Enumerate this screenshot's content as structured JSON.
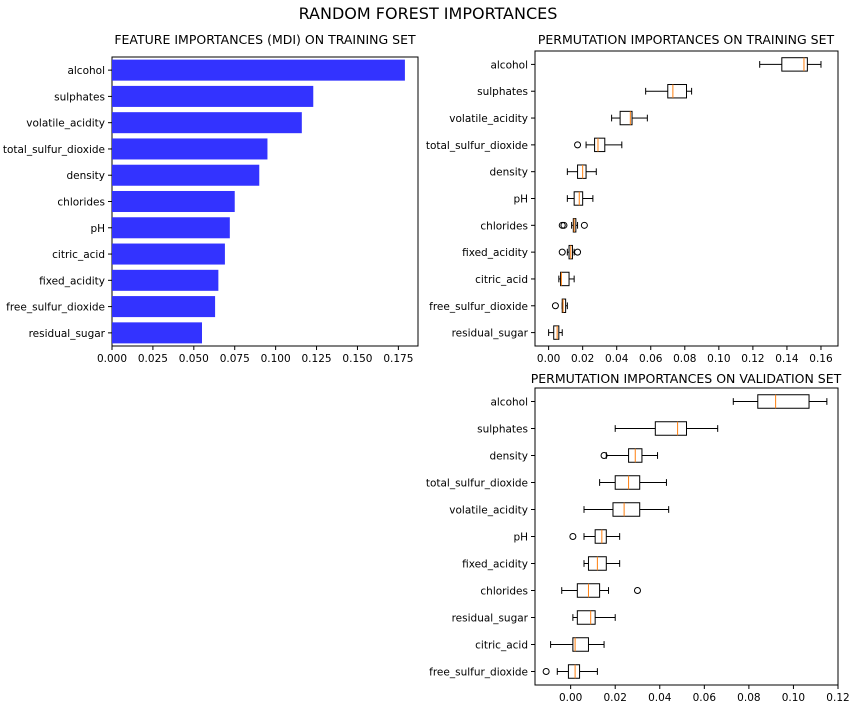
{
  "figure": {
    "title": "RANDOM FOREST IMPORTANCES"
  },
  "chart_data": [
    {
      "id": "mdi",
      "type": "bar",
      "orientation": "horizontal",
      "title": "FEATURE IMPORTANCES (MDI) ON TRAINING SET",
      "xlabel": "",
      "ylabel": "",
      "xlim": [
        0.0,
        0.187
      ],
      "xticks": [
        "0.000",
        "0.025",
        "0.050",
        "0.075",
        "0.100",
        "0.125",
        "0.150",
        "0.175"
      ],
      "bar_color": "#3333ff",
      "categories": [
        "alcohol",
        "sulphates",
        "volatile_acidity",
        "total_sulfur_dioxide",
        "density",
        "chlorides",
        "pH",
        "citric_acid",
        "fixed_acidity",
        "free_sulfur_dioxide",
        "residual_sugar"
      ],
      "values": [
        0.179,
        0.123,
        0.116,
        0.095,
        0.09,
        0.075,
        0.072,
        0.069,
        0.065,
        0.063,
        0.055
      ],
      "grid": false
    },
    {
      "id": "perm_train",
      "type": "box",
      "orientation": "horizontal",
      "title": "PERMUTATION IMPORTANCES ON TRAINING SET",
      "xlabel": "",
      "ylabel": "",
      "xlim": [
        -0.008,
        0.17
      ],
      "xticks": [
        "0.00",
        "0.02",
        "0.04",
        "0.06",
        "0.08",
        "0.10",
        "0.12",
        "0.14",
        "0.16"
      ],
      "box_color": "#000000",
      "median_color": "#ff7f0e",
      "categories": [
        "alcohol",
        "sulphates",
        "volatile_acidity",
        "total_sulfur_dioxide",
        "density",
        "pH",
        "chlorides",
        "fixed_acidity",
        "citric_acid",
        "free_sulfur_dioxide",
        "residual_sugar"
      ],
      "boxes": [
        {
          "wlo": 0.124,
          "q1": 0.137,
          "med": 0.15,
          "q3": 0.152,
          "whi": 0.16,
          "outliers": []
        },
        {
          "wlo": 0.057,
          "q1": 0.07,
          "med": 0.073,
          "q3": 0.081,
          "whi": 0.084,
          "outliers": []
        },
        {
          "wlo": 0.037,
          "q1": 0.042,
          "med": 0.048,
          "q3": 0.049,
          "whi": 0.058,
          "outliers": []
        },
        {
          "wlo": 0.022,
          "q1": 0.027,
          "med": 0.029,
          "q3": 0.033,
          "whi": 0.043,
          "outliers": [
            0.017
          ]
        },
        {
          "wlo": 0.011,
          "q1": 0.017,
          "med": 0.02,
          "q3": 0.022,
          "whi": 0.028,
          "outliers": []
        },
        {
          "wlo": 0.011,
          "q1": 0.015,
          "med": 0.018,
          "q3": 0.02,
          "whi": 0.026,
          "outliers": []
        },
        {
          "wlo": 0.0135,
          "q1": 0.0145,
          "med": 0.015,
          "q3": 0.016,
          "whi": 0.017,
          "outliers": [
            0.008,
            0.009,
            0.021
          ]
        },
        {
          "wlo": 0.011,
          "q1": 0.012,
          "med": 0.013,
          "q3": 0.014,
          "whi": 0.015,
          "outliers": [
            0.008,
            0.017
          ]
        },
        {
          "wlo": 0.006,
          "q1": 0.007,
          "med": 0.0075,
          "q3": 0.012,
          "whi": 0.015,
          "outliers": []
        },
        {
          "wlo": 0.008,
          "q1": 0.008,
          "med": 0.0085,
          "q3": 0.01,
          "whi": 0.011,
          "outliers": [
            0.004
          ]
        },
        {
          "wlo": 0.0,
          "q1": 0.003,
          "med": 0.005,
          "q3": 0.006,
          "whi": 0.008,
          "outliers": []
        }
      ],
      "grid": false
    },
    {
      "id": "perm_val",
      "type": "box",
      "orientation": "horizontal",
      "title": "PERMUTATION IMPORTANCES ON VALIDATION SET",
      "xlabel": "",
      "ylabel": "",
      "xlim": [
        -0.016,
        0.12
      ],
      "xticks": [
        "0.00",
        "0.02",
        "0.04",
        "0.06",
        "0.08",
        "0.10",
        "0.12"
      ],
      "box_color": "#000000",
      "median_color": "#ff7f0e",
      "categories": [
        "alcohol",
        "sulphates",
        "density",
        "total_sulfur_dioxide",
        "volatile_acidity",
        "pH",
        "fixed_acidity",
        "chlorides",
        "residual_sugar",
        "citric_acid",
        "free_sulfur_dioxide"
      ],
      "boxes": [
        {
          "wlo": 0.073,
          "q1": 0.084,
          "med": 0.092,
          "q3": 0.107,
          "whi": 0.115,
          "outliers": []
        },
        {
          "wlo": 0.02,
          "q1": 0.038,
          "med": 0.048,
          "q3": 0.052,
          "whi": 0.066,
          "outliers": []
        },
        {
          "wlo": 0.016,
          "q1": 0.026,
          "med": 0.029,
          "q3": 0.032,
          "whi": 0.039,
          "outliers": [
            0.015
          ]
        },
        {
          "wlo": 0.013,
          "q1": 0.02,
          "med": 0.026,
          "q3": 0.031,
          "whi": 0.043,
          "outliers": []
        },
        {
          "wlo": 0.006,
          "q1": 0.019,
          "med": 0.024,
          "q3": 0.031,
          "whi": 0.044,
          "outliers": []
        },
        {
          "wlo": 0.006,
          "q1": 0.011,
          "med": 0.014,
          "q3": 0.016,
          "whi": 0.022,
          "outliers": [
            0.001
          ]
        },
        {
          "wlo": 0.006,
          "q1": 0.008,
          "med": 0.012,
          "q3": 0.016,
          "whi": 0.022,
          "outliers": []
        },
        {
          "wlo": -0.004,
          "q1": 0.003,
          "med": 0.008,
          "q3": 0.013,
          "whi": 0.017,
          "outliers": [
            0.03
          ]
        },
        {
          "wlo": 0.001,
          "q1": 0.003,
          "med": 0.009,
          "q3": 0.011,
          "whi": 0.02,
          "outliers": []
        },
        {
          "wlo": -0.009,
          "q1": 0.001,
          "med": 0.002,
          "q3": 0.008,
          "whi": 0.015,
          "outliers": []
        },
        {
          "wlo": -0.006,
          "q1": -0.001,
          "med": 0.002,
          "q3": 0.004,
          "whi": 0.012,
          "outliers": [
            -0.011
          ]
        }
      ],
      "grid": false
    }
  ]
}
